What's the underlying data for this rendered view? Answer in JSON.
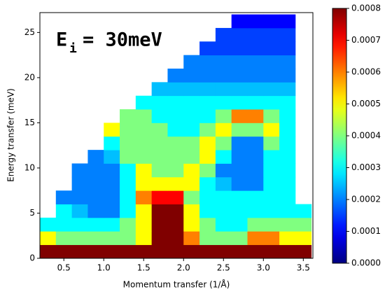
{
  "chart_data": {
    "type": "heatmap",
    "x_label": "Momentum transfer (1/Å)",
    "y_label": "Energy transfer (meV)",
    "annotation": {
      "main": "E",
      "sub": "i",
      "rest": "= 30meV"
    },
    "colormap": "jet",
    "clim": [
      0,
      0.0008
    ],
    "cticks": [
      {
        "value": 0,
        "label": "0.0000"
      },
      {
        "value": 0.0001,
        "label": "0.0001"
      },
      {
        "value": 0.0002,
        "label": "0.0002"
      },
      {
        "value": 0.0003,
        "label": "0.0003"
      },
      {
        "value": 0.0004,
        "label": "0.0004"
      },
      {
        "value": 0.0005,
        "label": "0.0005"
      },
      {
        "value": 0.0006,
        "label": "0.0006"
      },
      {
        "value": 0.0007,
        "label": "0.0007"
      },
      {
        "value": 0.0008,
        "label": "0.0008"
      }
    ],
    "xlim": [
      0.2,
      3.62
    ],
    "ylim": [
      0,
      27.2
    ],
    "xticks": [
      0.5,
      1.0,
      1.5,
      2.0,
      2.5,
      3.0,
      3.5
    ],
    "yticks": [
      0,
      5,
      10,
      15,
      20,
      25
    ],
    "x_edges": [
      0.2,
      0.4,
      0.6,
      0.8,
      1.0,
      1.2,
      1.4,
      1.6,
      1.8,
      2.0,
      2.2,
      2.4,
      2.6,
      2.8,
      3.0,
      3.2,
      3.4,
      3.6
    ],
    "y_edges": [
      0,
      1.5,
      3,
      4.5,
      6,
      7.5,
      9,
      10.5,
      12,
      13.5,
      15,
      16.5,
      18,
      19.5,
      21,
      22.5,
      24,
      25.5,
      27
    ],
    "z": [
      [
        0.0008,
        0.0008,
        0.0008,
        0.0008,
        0.0008,
        0.0008,
        0.0008,
        0.0008,
        0.0008,
        0.0008,
        0.0008,
        0.0008,
        0.0008,
        0.0008,
        0.0008,
        0.0008,
        0.0008
      ],
      [
        0.0005,
        0.0004,
        0.0004,
        0.0004,
        0.0004,
        0.0004,
        0.0005,
        0.0008,
        0.0008,
        0.0006,
        0.0004,
        0.0004,
        0.0004,
        0.0006,
        0.0006,
        0.0005,
        0.0005
      ],
      [
        0.0003,
        0.0003,
        0.0003,
        0.0003,
        0.0003,
        0.0004,
        0.0005,
        0.0008,
        0.0008,
        0.0005,
        0.0004,
        0.0003,
        0.0003,
        0.0004,
        0.0004,
        0.0004,
        0.0004
      ],
      [
        null,
        0.0003,
        0.00025,
        0.0002,
        0.0002,
        0.0003,
        0.0005,
        0.0008,
        0.0008,
        0.0005,
        0.0003,
        0.0003,
        0.0003,
        0.0003,
        0.0003,
        0.0003,
        0.0003
      ],
      [
        null,
        0.0002,
        0.0002,
        0.0002,
        0.0002,
        0.0003,
        0.0006,
        0.0007,
        0.0007,
        0.0004,
        0.0003,
        0.0003,
        0.0003,
        0.0003,
        0.0003,
        0.0003,
        null
      ],
      [
        null,
        null,
        0.0002,
        0.0002,
        0.0002,
        0.0003,
        0.0005,
        0.0005,
        0.0005,
        0.0005,
        0.0003,
        0.00025,
        0.0002,
        0.0002,
        0.0003,
        0.0003,
        null
      ],
      [
        null,
        null,
        0.0002,
        0.0002,
        0.0002,
        0.0003,
        0.0005,
        0.0004,
        0.0004,
        0.0005,
        0.0004,
        0.0002,
        0.0002,
        0.0002,
        0.0003,
        0.0003,
        null
      ],
      [
        null,
        null,
        null,
        0.0002,
        0.00025,
        0.0004,
        0.0004,
        0.0004,
        0.0004,
        0.0004,
        0.0005,
        0.0003,
        0.0002,
        0.0002,
        0.0003,
        0.0003,
        null
      ],
      [
        null,
        null,
        null,
        null,
        0.0003,
        0.0004,
        0.0004,
        0.0004,
        0.0004,
        0.0004,
        0.0005,
        0.0004,
        0.0002,
        0.0002,
        0.0004,
        0.0003,
        null
      ],
      [
        null,
        null,
        null,
        null,
        0.0005,
        0.0004,
        0.0004,
        0.0004,
        0.0003,
        0.0003,
        0.0004,
        0.0005,
        0.0004,
        0.0004,
        0.0005,
        0.0003,
        null
      ],
      [
        null,
        null,
        null,
        null,
        null,
        0.0004,
        0.0004,
        0.0003,
        0.0003,
        0.0003,
        0.0003,
        0.0004,
        0.0006,
        0.0006,
        0.0004,
        0.0003,
        null
      ],
      [
        null,
        null,
        null,
        null,
        null,
        null,
        0.0003,
        0.0003,
        0.0003,
        0.0003,
        0.0003,
        0.0003,
        0.0003,
        0.0003,
        0.0003,
        0.0003,
        null
      ],
      [
        null,
        null,
        null,
        null,
        null,
        null,
        null,
        0.00025,
        0.00025,
        0.00025,
        0.00025,
        0.00025,
        0.00025,
        0.00025,
        0.00025,
        0.00025,
        null
      ],
      [
        null,
        null,
        null,
        null,
        null,
        null,
        null,
        null,
        0.0002,
        0.0002,
        0.0002,
        0.0002,
        0.0002,
        0.0002,
        0.0002,
        0.0002,
        null
      ],
      [
        null,
        null,
        null,
        null,
        null,
        null,
        null,
        null,
        null,
        0.0002,
        0.0002,
        0.0002,
        0.0002,
        0.0002,
        0.0002,
        0.0002,
        null
      ],
      [
        null,
        null,
        null,
        null,
        null,
        null,
        null,
        null,
        null,
        null,
        0.00015,
        0.00015,
        0.00015,
        0.00015,
        0.00015,
        0.00015,
        null
      ],
      [
        null,
        null,
        null,
        null,
        null,
        null,
        null,
        null,
        null,
        null,
        null,
        0.00015,
        0.00015,
        0.00015,
        0.00015,
        0.00015,
        null
      ],
      [
        null,
        null,
        null,
        null,
        null,
        null,
        null,
        null,
        null,
        null,
        null,
        null,
        0.0001,
        0.0001,
        0.0001,
        0.0001,
        null
      ]
    ]
  }
}
